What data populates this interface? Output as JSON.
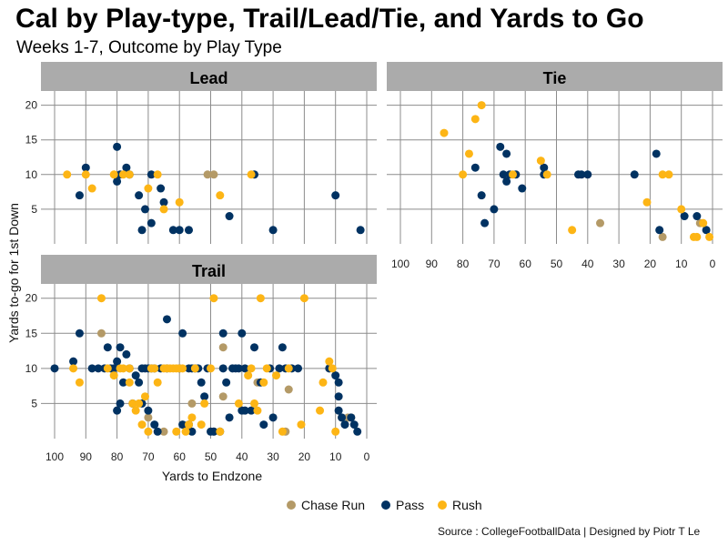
{
  "chart_data": {
    "type": "scatter",
    "title": "Cal by Play-type, Trail/Lead/Tie, and Yards to Go",
    "subtitle": "Weeks 1-7, Outcome by Play Type",
    "xlabel": "Yards to Endzone",
    "ylabel": "Yards to-go for 1st Down",
    "caption": "Source : CollegeFootballData | Designed by Piotr T Le",
    "xlim": [
      100,
      0
    ],
    "ylim": [
      0,
      21
    ],
    "x_ticks": [
      "100",
      "90",
      "80",
      "70",
      "60",
      "50",
      "40",
      "30",
      "20",
      "10",
      "0"
    ],
    "y_ticks": [
      "5",
      "10",
      "15",
      "20"
    ],
    "legend": [
      {
        "name": "Chase Run",
        "color": "#B49A67"
      },
      {
        "name": "Pass",
        "color": "#003262"
      },
      {
        "name": "Rush",
        "color": "#FDB515"
      }
    ],
    "panels": [
      {
        "label": "Lead",
        "points": {
          "Chase Run": [
            [
              51,
              10
            ],
            [
              49,
              10
            ]
          ],
          "Pass": [
            [
              92,
              7
            ],
            [
              90,
              11
            ],
            [
              80,
              14
            ],
            [
              80,
              9
            ],
            [
              79,
              10
            ],
            [
              77,
              11
            ],
            [
              76,
              10
            ],
            [
              73,
              7
            ],
            [
              72,
              2
            ],
            [
              71,
              5
            ],
            [
              69,
              10
            ],
            [
              69,
              3
            ],
            [
              66,
              8
            ],
            [
              65,
              6
            ],
            [
              62,
              2
            ],
            [
              60,
              2
            ],
            [
              57,
              2
            ],
            [
              44,
              4
            ],
            [
              36,
              10
            ],
            [
              30,
              2
            ],
            [
              10,
              7
            ],
            [
              2,
              2
            ]
          ],
          "Rush": [
            [
              96,
              10
            ],
            [
              90,
              10
            ],
            [
              88,
              8
            ],
            [
              81,
              10
            ],
            [
              78,
              10
            ],
            [
              76,
              10
            ],
            [
              70,
              8
            ],
            [
              67,
              10
            ],
            [
              65,
              5
            ],
            [
              60,
              6
            ],
            [
              47,
              7
            ],
            [
              37,
              10
            ]
          ]
        }
      },
      {
        "label": "Tie",
        "points": {
          "Chase Run": [
            [
              36,
              3
            ],
            [
              16,
              1
            ],
            [
              4,
              3
            ]
          ],
          "Pass": [
            [
              76,
              11
            ],
            [
              74,
              7
            ],
            [
              73,
              3
            ],
            [
              70,
              5
            ],
            [
              68,
              14
            ],
            [
              67,
              10
            ],
            [
              66,
              9
            ],
            [
              66,
              13
            ],
            [
              65,
              10
            ],
            [
              63,
              10
            ],
            [
              61,
              8
            ],
            [
              54,
              10
            ],
            [
              54,
              11
            ],
            [
              43,
              10
            ],
            [
              42,
              10
            ],
            [
              40,
              10
            ],
            [
              25,
              10
            ],
            [
              18,
              13
            ],
            [
              17,
              2
            ],
            [
              9,
              4
            ],
            [
              5,
              4
            ],
            [
              2,
              2
            ]
          ],
          "Rush": [
            [
              86,
              16
            ],
            [
              80,
              10
            ],
            [
              78,
              13
            ],
            [
              76,
              18
            ],
            [
              74,
              20
            ],
            [
              64,
              10
            ],
            [
              55,
              12
            ],
            [
              53,
              10
            ],
            [
              45,
              2
            ],
            [
              21,
              6
            ],
            [
              16,
              10
            ],
            [
              14,
              10
            ],
            [
              10,
              5
            ],
            [
              6,
              1
            ],
            [
              5,
              1
            ],
            [
              3,
              3
            ],
            [
              1,
              1
            ]
          ]
        }
      },
      {
        "label": "Trail",
        "points": {
          "Chase Run": [
            [
              85,
              15
            ],
            [
              70,
              3
            ],
            [
              65,
              1
            ],
            [
              56,
              5
            ],
            [
              49,
              1
            ],
            [
              46,
              13
            ],
            [
              46,
              6
            ],
            [
              35,
              8
            ],
            [
              26,
              1
            ],
            [
              25,
              7
            ],
            [
              12,
              10
            ],
            [
              8,
              3
            ],
            [
              6,
              3
            ],
            [
              5,
              3
            ]
          ],
          "Pass": [
            [
              100,
              10
            ],
            [
              94,
              11
            ],
            [
              92,
              15
            ],
            [
              88,
              10
            ],
            [
              86,
              10
            ],
            [
              84,
              10
            ],
            [
              83,
              13
            ],
            [
              82,
              10
            ],
            [
              81,
              10
            ],
            [
              80,
              11
            ],
            [
              80,
              4
            ],
            [
              79,
              13
            ],
            [
              79,
              5
            ],
            [
              78,
              8
            ],
            [
              77,
              12
            ],
            [
              76,
              10
            ],
            [
              75,
              5
            ],
            [
              74,
              9
            ],
            [
              73,
              8
            ],
            [
              72,
              10
            ],
            [
              72,
              5
            ],
            [
              71,
              10
            ],
            [
              70,
              4
            ],
            [
              70,
              10
            ],
            [
              69,
              10
            ],
            [
              68,
              2
            ],
            [
              68,
              10
            ],
            [
              67,
              1
            ],
            [
              66,
              10
            ],
            [
              64,
              10
            ],
            [
              64,
              17
            ],
            [
              60,
              10
            ],
            [
              59,
              15
            ],
            [
              59,
              2
            ],
            [
              57,
              2
            ],
            [
              57,
              10
            ],
            [
              56,
              1
            ],
            [
              56,
              10
            ],
            [
              55,
              10
            ],
            [
              54,
              10
            ],
            [
              53,
              8
            ],
            [
              52,
              6
            ],
            [
              51,
              10
            ],
            [
              50,
              1
            ],
            [
              49,
              1
            ],
            [
              47,
              1
            ],
            [
              46,
              15
            ],
            [
              46,
              10
            ],
            [
              45,
              8
            ],
            [
              44,
              3
            ],
            [
              43,
              10
            ],
            [
              42,
              10
            ],
            [
              41,
              10
            ],
            [
              40,
              15
            ],
            [
              40,
              4
            ],
            [
              39,
              10
            ],
            [
              39,
              4
            ],
            [
              37,
              4
            ],
            [
              36,
              13
            ],
            [
              34,
              8
            ],
            [
              33,
              2
            ],
            [
              31,
              10
            ],
            [
              30,
              3
            ],
            [
              28,
              10
            ],
            [
              27,
              13
            ],
            [
              26,
              10
            ],
            [
              24,
              10
            ],
            [
              22,
              10
            ],
            [
              12,
              10
            ],
            [
              10,
              9
            ],
            [
              9,
              8
            ],
            [
              9,
              6
            ],
            [
              9,
              4
            ],
            [
              8,
              3
            ],
            [
              7,
              2
            ],
            [
              5,
              3
            ],
            [
              4,
              2
            ],
            [
              3,
              1
            ]
          ],
          "Rush": [
            [
              94,
              10
            ],
            [
              92,
              8
            ],
            [
              85,
              20
            ],
            [
              83,
              10
            ],
            [
              81,
              9
            ],
            [
              79,
              10
            ],
            [
              78,
              10
            ],
            [
              76,
              8
            ],
            [
              76,
              10
            ],
            [
              75,
              5
            ],
            [
              74,
              4
            ],
            [
              73,
              5
            ],
            [
              72,
              2
            ],
            [
              71,
              6
            ],
            [
              70,
              1
            ],
            [
              69,
              10
            ],
            [
              68,
              10
            ],
            [
              67,
              8
            ],
            [
              65,
              10
            ],
            [
              64,
              10
            ],
            [
              63,
              10
            ],
            [
              62,
              10
            ],
            [
              61,
              1
            ],
            [
              61,
              10
            ],
            [
              60,
              10
            ],
            [
              59,
              10
            ],
            [
              58,
              1
            ],
            [
              57,
              2
            ],
            [
              56,
              3
            ],
            [
              55,
              10
            ],
            [
              53,
              2
            ],
            [
              52,
              5
            ],
            [
              50,
              10
            ],
            [
              49,
              20
            ],
            [
              47,
              1
            ],
            [
              41,
              5
            ],
            [
              38,
              9
            ],
            [
              37,
              10
            ],
            [
              36,
              5
            ],
            [
              35,
              4
            ],
            [
              34,
              20
            ],
            [
              33,
              8
            ],
            [
              32,
              10
            ],
            [
              29,
              9
            ],
            [
              27,
              1
            ],
            [
              25,
              10
            ],
            [
              21,
              2
            ],
            [
              20,
              20
            ],
            [
              15,
              4
            ],
            [
              14,
              8
            ],
            [
              12,
              11
            ],
            [
              11,
              10
            ],
            [
              10,
              1
            ]
          ]
        }
      }
    ]
  }
}
